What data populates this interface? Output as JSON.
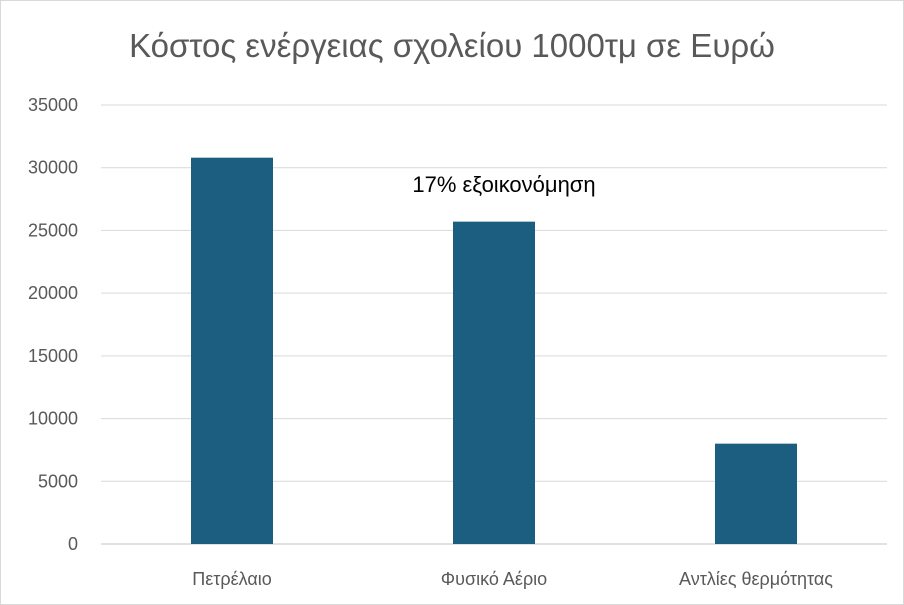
{
  "chart_data": {
    "type": "bar",
    "title": "Κόστος ενέργειας σχολείου 1000τμ σε Ευρώ",
    "categories": [
      "Πετρέλαιο",
      "Φυσικό Αέριο",
      "Αντλίες θερμότητας"
    ],
    "values": [
      30800,
      25700,
      8000
    ],
    "ylim": [
      0,
      35000
    ],
    "yticks": [
      0,
      5000,
      10000,
      15000,
      20000,
      25000,
      30000,
      35000
    ],
    "ytick_labels": [
      "0",
      "5000",
      "10000",
      "15000",
      "20000",
      "25000",
      "30000",
      "35000"
    ],
    "grid": true,
    "legend": "none",
    "annotations": [
      {
        "text": "17% εξοικονόμηση",
        "category": "Φυσικό Αέριο",
        "value": 28700
      }
    ],
    "colors": {
      "bar": "#1b5e7f",
      "grid": "#d9d9d9",
      "text": "#595959"
    }
  }
}
